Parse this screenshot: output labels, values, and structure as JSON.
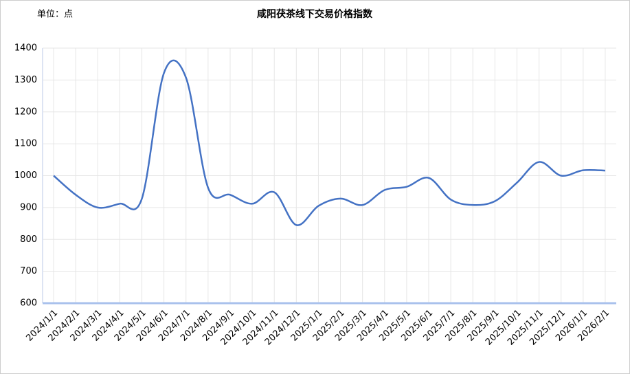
{
  "chart_data": {
    "type": "line",
    "title": "咸阳茯茶线下交易价格指数",
    "unit": "单位：点",
    "categories": [
      "2024/1/1",
      "2024/2/1",
      "2024/3/1",
      "2024/4/1",
      "2024/5/1",
      "2024/6/1",
      "2024/7/1",
      "2024/8/1",
      "2024/9/1",
      "2024/10/1",
      "2024/11/1",
      "2024/12/1",
      "2025/1/1",
      "2025/2/1",
      "2025/3/1",
      "2025/4/1",
      "2025/5/1",
      "2025/6/1",
      "2025/7/1",
      "2025/8/1",
      "2025/9/1",
      "2025/10/1",
      "2025/11/1",
      "2025/12/1",
      "2026/1/1",
      "2026/2/1"
    ],
    "series": [
      {
        "color": "#4472c4",
        "values": [
          1000,
          940,
          900,
          912,
          928,
          1322,
          1307,
          962,
          940,
          912,
          948,
          845,
          905,
          928,
          908,
          955,
          965,
          993,
          925,
          908,
          920,
          978,
          1043,
          1000,
          1017,
          1016
        ]
      }
    ],
    "ylim": [
      600,
      1400
    ],
    "yticks": [
      600,
      700,
      800,
      900,
      1000,
      1100,
      1200,
      1300,
      1400
    ],
    "grid": true
  }
}
